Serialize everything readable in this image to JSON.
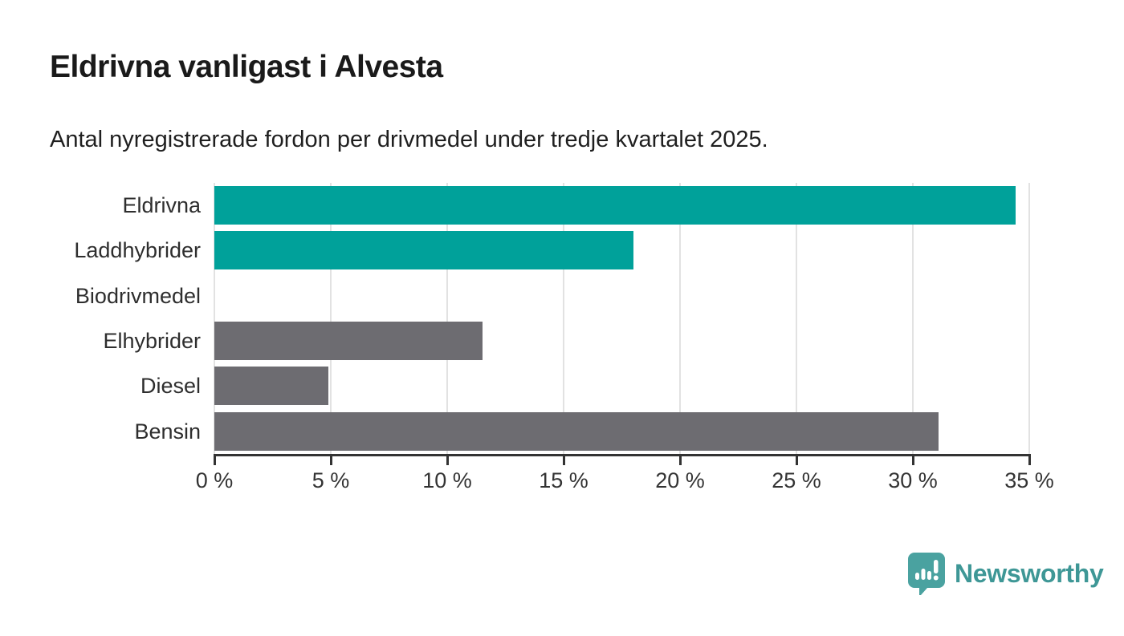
{
  "header": {
    "title": "Eldrivna vanligast i Alvesta",
    "subtitle": "Antal nyregistrerade fordon per drivmedel under tredje kvartalet 2025."
  },
  "chart_data": {
    "type": "bar",
    "orientation": "horizontal",
    "title": "Eldrivna vanligast i Alvesta",
    "subtitle": "Antal nyregistrerade fordon per drivmedel under tredje kvartalet 2025.",
    "categories": [
      "Eldrivna",
      "Laddhybrider",
      "Biodrivmedel",
      "Elhybrider",
      "Diesel",
      "Bensin"
    ],
    "values": [
      34.4,
      18.0,
      0,
      11.5,
      4.9,
      31.1
    ],
    "unit": "%",
    "bar_colors": [
      "#00a19a",
      "#00a19a",
      "#00a19a",
      "#6d6c71",
      "#6d6c71",
      "#6d6c71"
    ],
    "xlim": [
      0,
      35
    ],
    "x_ticks": [
      0,
      5,
      10,
      15,
      20,
      25,
      30,
      35
    ],
    "x_tick_labels": [
      "0 %",
      "5 %",
      "10 %",
      "15 %",
      "20 %",
      "25 %",
      "30 %",
      "35 %"
    ],
    "xlabel": "",
    "ylabel": "",
    "grid": "vertical",
    "legend_position": "none"
  },
  "colors": {
    "accent_teal": "#00a19a",
    "neutral_gray": "#6d6c71",
    "gridline": "#e2e2e2",
    "axis": "#333333",
    "title_text": "#1a1a1a",
    "body_text": "#2e2e2e",
    "logo_teal": "#3e9796",
    "logo_icon_teal": "#4aa2a0"
  },
  "footer": {
    "brand": "Newsworthy"
  },
  "icons": {
    "logo_icon": "bar-chart-speech-bubble-icon"
  }
}
